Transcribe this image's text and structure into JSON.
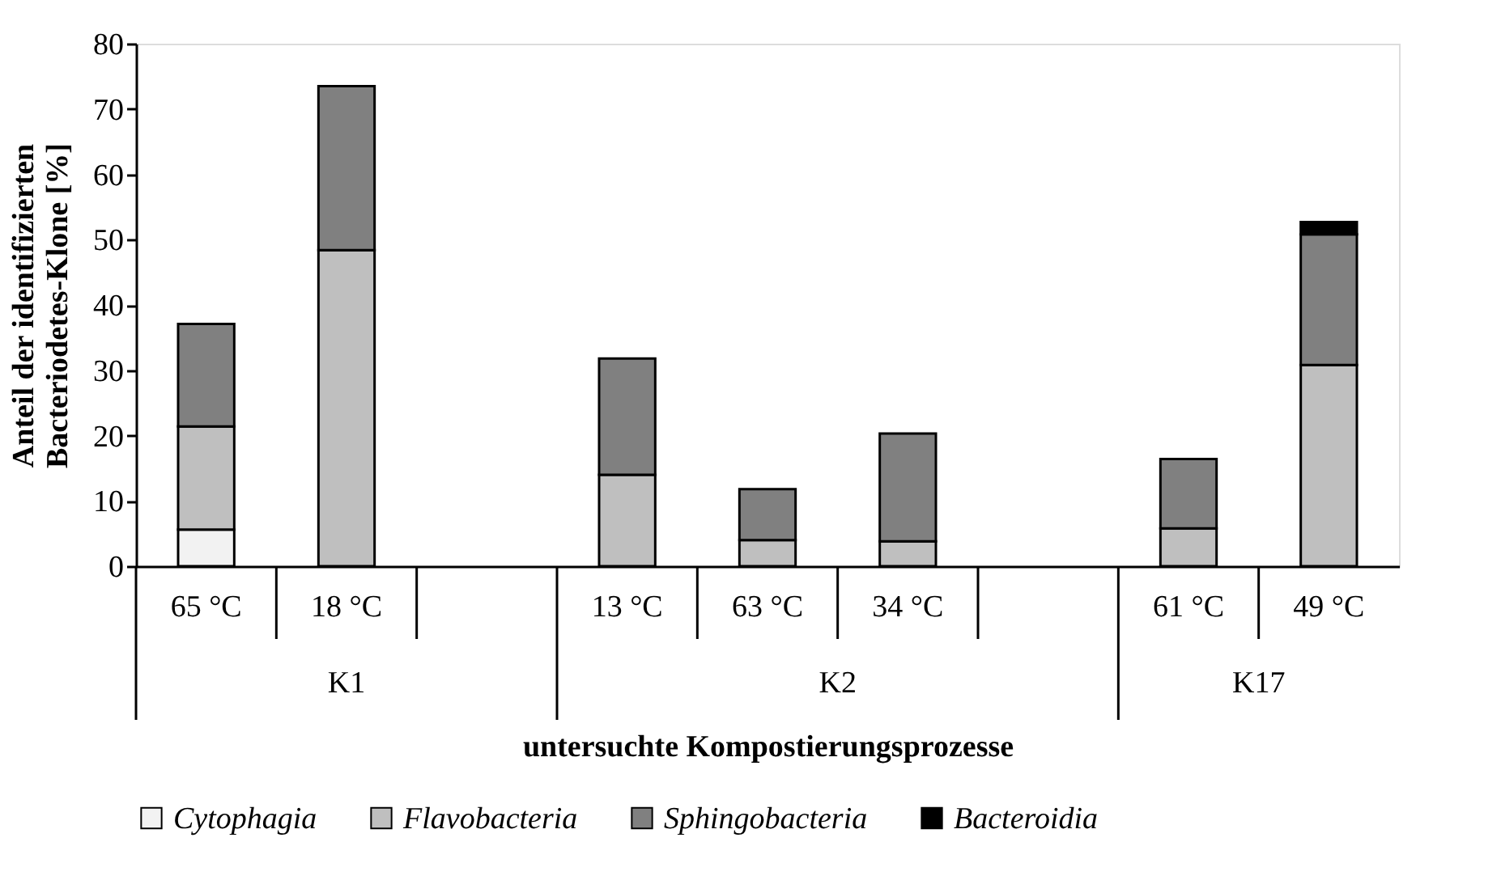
{
  "chart_data": {
    "type": "bar",
    "stacked": true,
    "categories": [
      "65 °C",
      "18 °C",
      null,
      "13 °C",
      "63 °C",
      "34 °C",
      null,
      "61 °C",
      "49 °C"
    ],
    "series": [
      {
        "name": "Cytophagia",
        "color": "#f2f2f2",
        "values": [
          5.6,
          0,
          null,
          0,
          0,
          0,
          null,
          0,
          0
        ]
      },
      {
        "name": "Flavobacteria",
        "color": "#bfbfbf",
        "values": [
          15.8,
          48.4,
          null,
          14.0,
          4.0,
          3.8,
          null,
          5.8,
          30.8
        ]
      },
      {
        "name": "Sphingobacteria",
        "color": "#808080",
        "values": [
          15.7,
          25.1,
          null,
          17.8,
          7.8,
          16.5,
          null,
          10.6,
          20.0
        ]
      },
      {
        "name": "Bacteroidia",
        "color": "#000000",
        "values": [
          0,
          0,
          null,
          0,
          0,
          0,
          null,
          0,
          1.9
        ]
      }
    ],
    "xlabel": "untersuchte Kompostierungsprozesse",
    "ylabel": "Anteil der identifizierten Bacteriodetes-Klone [%]",
    "annotations": [
      "K1",
      "K2",
      "K17"
    ],
    "ylim": [
      0,
      80
    ],
    "yticks": [
      0,
      10,
      20,
      30,
      40,
      50,
      60,
      70,
      80
    ],
    "grid": false,
    "legend": "bottom"
  }
}
